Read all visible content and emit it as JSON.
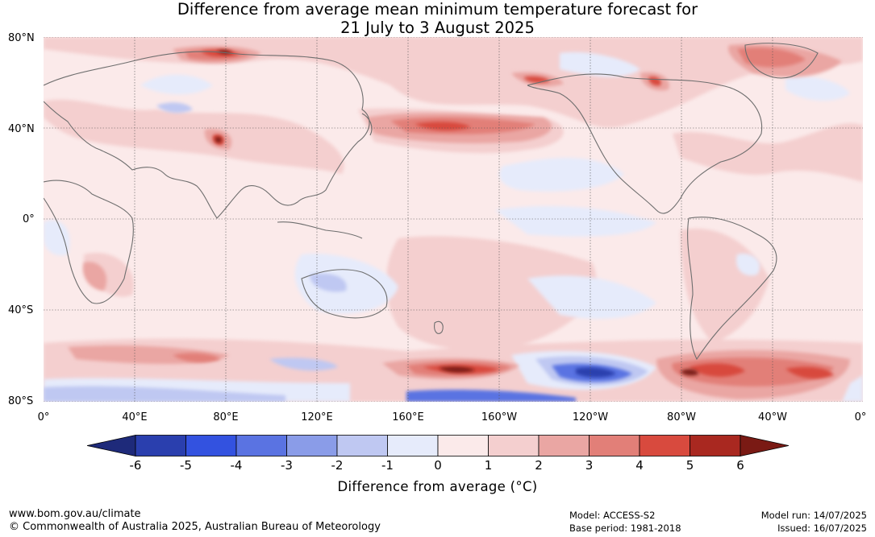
{
  "title": {
    "line1": "Difference from average mean minimum temperature forecast for",
    "line2": "21 July to 3 August 2025"
  },
  "map": {
    "lat_labels": [
      "80°N",
      "40°N",
      "0°",
      "40°S",
      "80°S"
    ],
    "lon_labels": [
      "0°",
      "40°E",
      "80°E",
      "120°E",
      "160°E",
      "160°W",
      "120°W",
      "80°W",
      "40°W",
      "0°"
    ],
    "background_color": "#fbeaea",
    "coast_color": "#6e6e6e",
    "grid": true
  },
  "colorbar": {
    "ticks": [
      "-6",
      "-5",
      "-4",
      "-3",
      "-2",
      "-1",
      "0",
      "1",
      "2",
      "3",
      "4",
      "5",
      "6"
    ],
    "label": "Difference from average (°C)",
    "colors": [
      "#1e2a7a",
      "#2a3fae",
      "#3352e0",
      "#5a73e2",
      "#8a9ce8",
      "#bfc8f2",
      "#e6ebfb",
      "#fbeaea",
      "#f4cfcf",
      "#eaa6a3",
      "#e27f78",
      "#d84a3e",
      "#a92820",
      "#7a1a14"
    ]
  },
  "footer": {
    "website": "www.bom.gov.au/climate",
    "copyright": "© Commonwealth of Australia 2025, Australian Bureau of Meteorology",
    "model": "Model: ACCESS-S2",
    "base_period": "Base period: 1981-2018",
    "model_run": "Model run: 14/07/2025",
    "issued": "Issued: 16/07/2025"
  }
}
